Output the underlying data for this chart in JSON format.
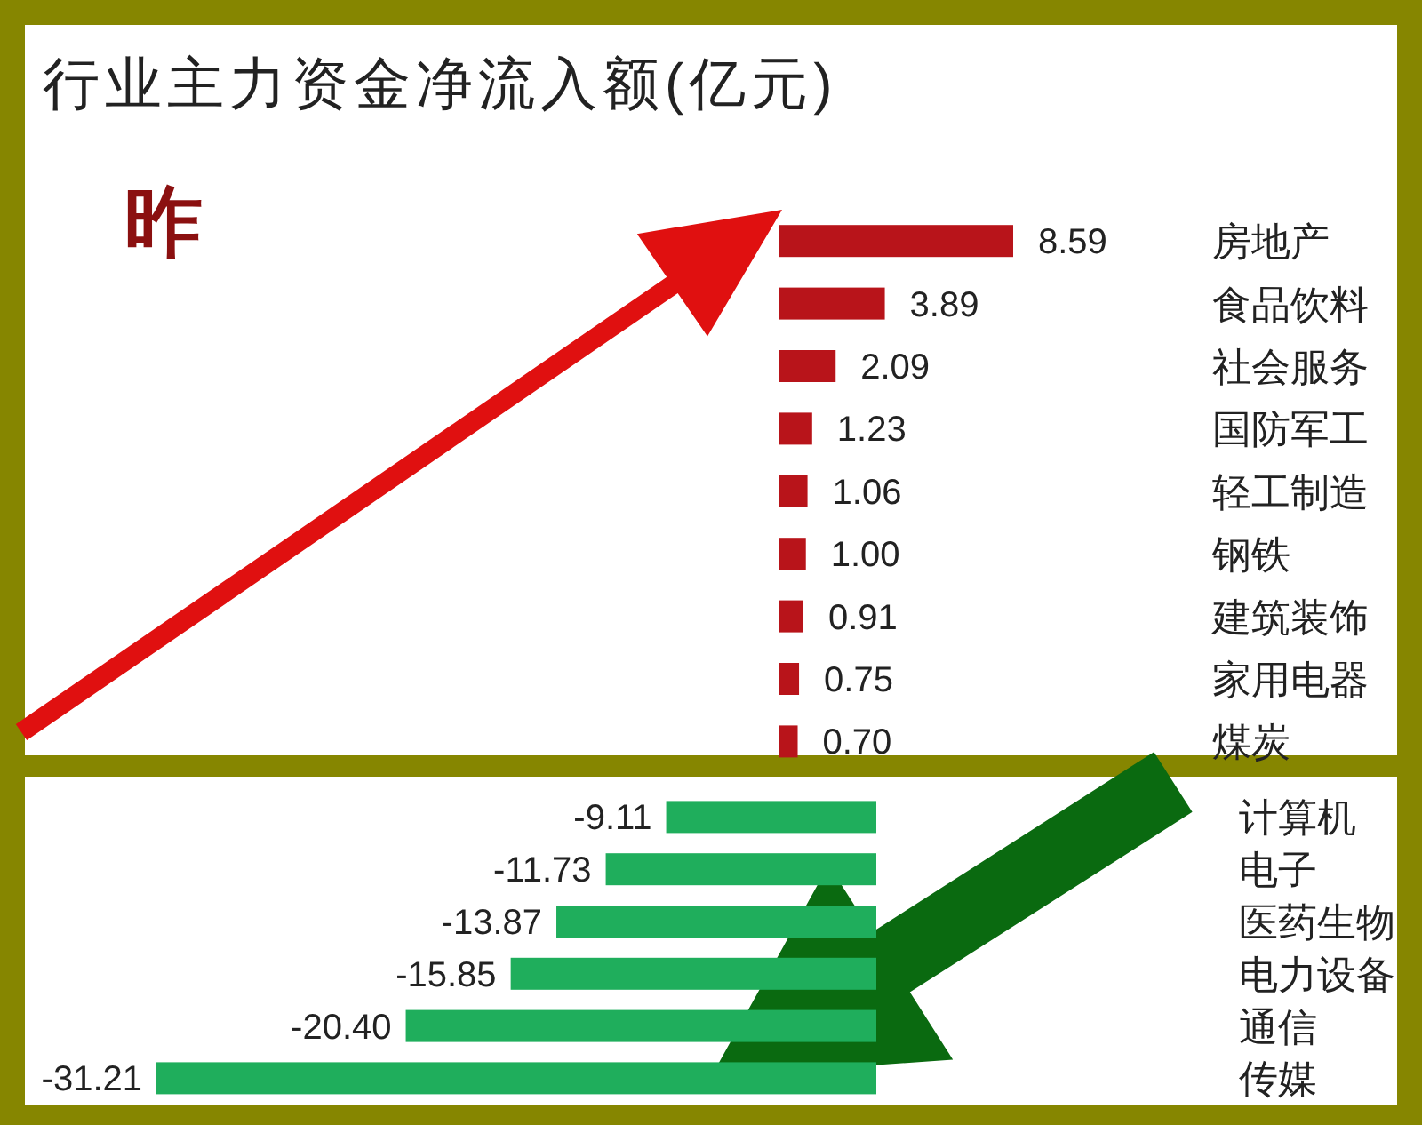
{
  "chart_data": [
    {
      "type": "bar",
      "orientation": "horizontal",
      "title": "行业主力资金净流入额(亿元)",
      "annotations": [
        "昨"
      ],
      "categories": [
        "房地产",
        "食品饮料",
        "社会服务",
        "国防军工",
        "轻工制造",
        "钢铁",
        "建筑装饰",
        "家用电器",
        "煤炭"
      ],
      "values": [
        8.59,
        3.89,
        2.09,
        1.23,
        1.06,
        1.0,
        0.91,
        0.75,
        0.7
      ],
      "color": "#b8141a",
      "value_labels": [
        "8.59",
        "3.89",
        "2.09",
        "1.23",
        "1.06",
        "1.00",
        "0.91",
        "0.75",
        "0.70"
      ]
    },
    {
      "type": "bar",
      "orientation": "horizontal",
      "categories": [
        "计算机",
        "电子",
        "医药生物",
        "电力设备",
        "通信",
        "传媒"
      ],
      "values": [
        -9.11,
        -11.73,
        -13.87,
        -15.85,
        -20.4,
        -31.21
      ],
      "color": "#1fae5c",
      "value_labels": [
        "-9.11",
        "-11.73",
        "-13.87",
        "-15.85",
        "-20.40",
        "-31.21"
      ]
    }
  ]
}
